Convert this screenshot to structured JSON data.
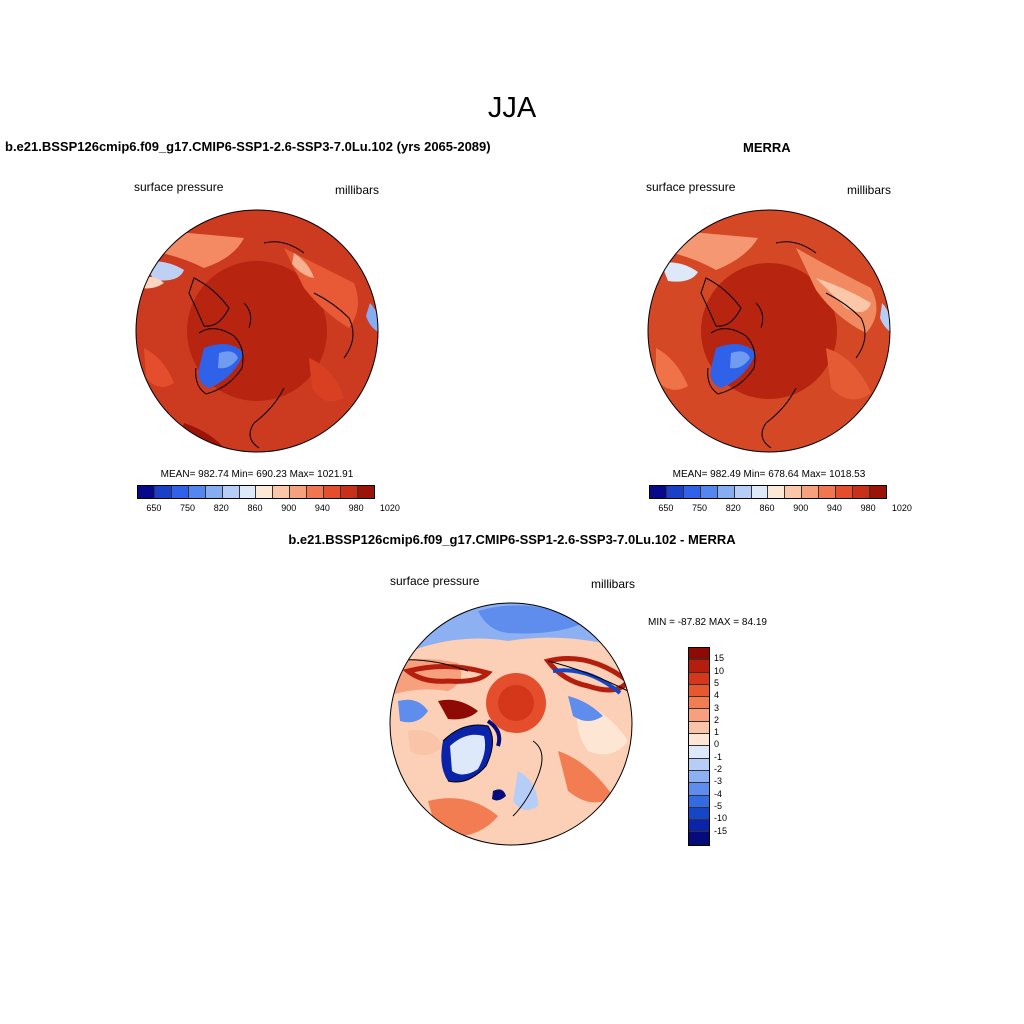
{
  "season": "JJA",
  "panels": {
    "model": {
      "title": "b.e21.BSSP126cmip6.f09_g17.CMIP6-SSP1-2.6-SSP3-7.0Lu.102 (yrs 2065-2089)",
      "variable": "surface pressure",
      "units": "millibars",
      "stats": "MEAN= 982.74  Min= 690.23  Max= 1021.91"
    },
    "obs": {
      "title": "MERRA",
      "variable": "surface pressure",
      "units": "millibars",
      "stats": "MEAN= 982.49  Min= 678.64  Max= 1018.53"
    },
    "diff": {
      "title": "b.e21.BSSP126cmip6.f09_g17.CMIP6-SSP1-2.6-SSP3-7.0Lu.102 - MERRA",
      "variable": "surface pressure",
      "units": "millibars",
      "stats": "MIN = -87.82 MAX =  84.19"
    }
  },
  "colorbar_abs": {
    "colors": [
      "#08088a",
      "#1a3fc9",
      "#2f62e8",
      "#5486f0",
      "#86acf2",
      "#b6cdf5",
      "#dde8f8",
      "#fde8d5",
      "#fbc7a8",
      "#f7a07c",
      "#f1764f",
      "#e44e2c",
      "#c9301a",
      "#9a1408"
    ],
    "tick_labels": [
      "650",
      "750",
      "820",
      "860",
      "900",
      "940",
      "980",
      "1020"
    ]
  },
  "colorbar_diff": {
    "colors": [
      "#8d0a05",
      "#b51d0c",
      "#d4371a",
      "#e7582e",
      "#f27d52",
      "#f6a07e",
      "#fac4a8",
      "#fde7d4",
      "#dde9fa",
      "#b6cef7",
      "#8cb0f2",
      "#5f8ded",
      "#336be3",
      "#1646c8",
      "#0a23a8",
      "#050b7a"
    ],
    "tick_labels": [
      "15",
      "10",
      "5",
      "4",
      "3",
      "2",
      "1",
      "0",
      "-1",
      "-2",
      "-3",
      "-4",
      "-5",
      "-10",
      "-15"
    ]
  }
}
